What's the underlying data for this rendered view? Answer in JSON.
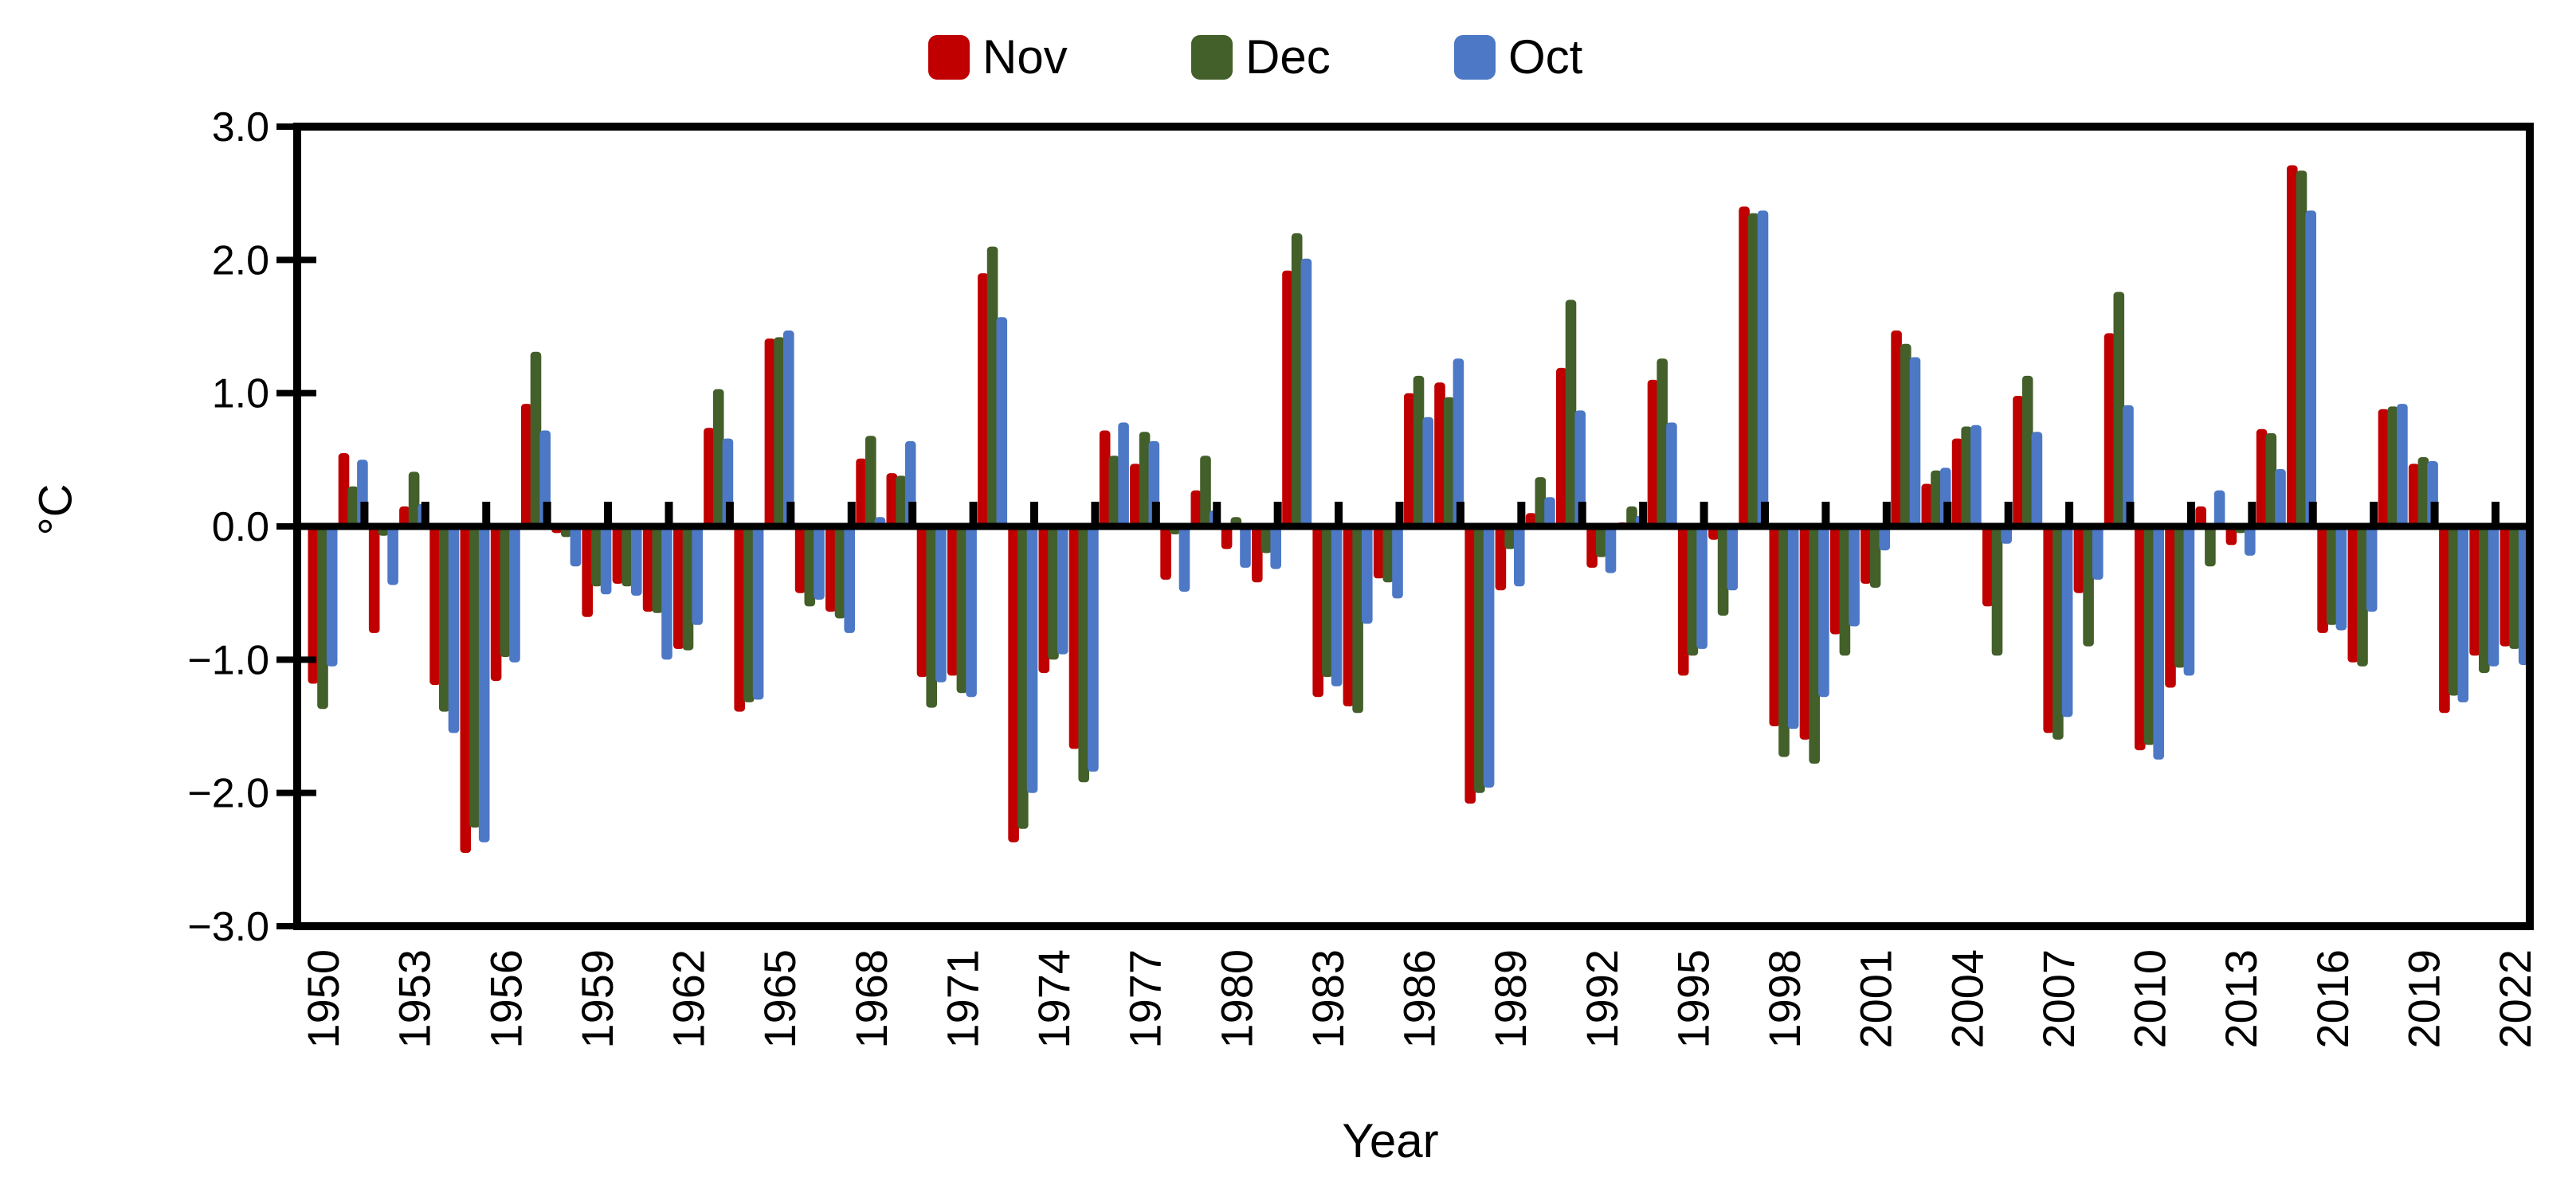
{
  "page": {
    "background": "#ffffff"
  },
  "legend": {
    "items": [
      {
        "label": "Nov",
        "color": "#c00000"
      },
      {
        "label": "Dec",
        "color": "#435f2a"
      },
      {
        "label": "Oct",
        "color": "#4c78c6"
      }
    ]
  },
  "y_axis": {
    "title": "°C",
    "tick_labels": [
      "3.0",
      "2.0",
      "1.0",
      "0.0",
      "−1.0",
      "−2.0",
      "−3.0"
    ],
    "min": -3.0,
    "max": 3.0,
    "step": 1.0
  },
  "x_axis": {
    "title": "Year",
    "tick_labels": [
      "1950",
      "1953",
      "1956",
      "1959",
      "1962",
      "1965",
      "1968",
      "1971",
      "1974",
      "1977",
      "1980",
      "1983",
      "1986",
      "1989",
      "1992",
      "1995",
      "1998",
      "2001",
      "2004",
      "2007",
      "2010",
      "2013",
      "2016",
      "2019",
      "2022"
    ]
  },
  "chart_data": {
    "type": "bar",
    "title": "",
    "xlabel": "Year",
    "ylabel": "°C",
    "ylim": [
      -3.0,
      3.0
    ],
    "grid": false,
    "legend_position": "top",
    "categories": [
      1950,
      1951,
      1952,
      1953,
      1954,
      1955,
      1956,
      1957,
      1958,
      1959,
      1960,
      1961,
      1962,
      1963,
      1964,
      1965,
      1966,
      1967,
      1968,
      1969,
      1970,
      1971,
      1972,
      1973,
      1974,
      1975,
      1976,
      1977,
      1978,
      1979,
      1980,
      1981,
      1982,
      1983,
      1984,
      1985,
      1986,
      1987,
      1988,
      1989,
      1990,
      1991,
      1992,
      1993,
      1994,
      1995,
      1996,
      1997,
      1998,
      1999,
      2000,
      2001,
      2002,
      2003,
      2004,
      2005,
      2006,
      2007,
      2008,
      2009,
      2010,
      2011,
      2012,
      2013,
      2014,
      2015,
      2016,
      2017,
      2018,
      2019,
      2020,
      2021,
      2022
    ],
    "series": [
      {
        "name": "Nov",
        "color": "#c00000",
        "values": [
          -1.18,
          0.55,
          -0.8,
          0.15,
          -1.19,
          -2.45,
          -1.16,
          0.92,
          -0.05,
          -0.68,
          -0.43,
          -0.64,
          -0.92,
          0.74,
          -1.39,
          1.41,
          -0.5,
          -0.64,
          0.51,
          0.4,
          -1.13,
          -1.12,
          1.9,
          -2.37,
          -1.1,
          -1.67,
          0.72,
          0.47,
          -0.4,
          0.27,
          -0.17,
          -0.42,
          1.92,
          -1.28,
          -1.35,
          -0.39,
          1.0,
          1.08,
          -2.08,
          -0.48,
          0.1,
          1.19,
          -0.31,
          0.03,
          1.1,
          -1.12,
          -0.1,
          2.4,
          -1.5,
          -1.6,
          -0.81,
          -0.43,
          1.47,
          0.32,
          0.66,
          -0.6,
          0.98,
          -1.55,
          -0.5,
          1.45,
          -1.68,
          -1.21,
          0.15,
          -0.14,
          0.73,
          2.71,
          -0.8,
          -1.02,
          0.88,
          0.47,
          -1.4,
          -0.97,
          -0.9
        ]
      },
      {
        "name": "Dec",
        "color": "#435f2a",
        "values": [
          -1.37,
          0.3,
          -0.07,
          0.41,
          -1.39,
          -2.26,
          -0.98,
          1.31,
          -0.08,
          -0.45,
          -0.45,
          -0.65,
          -0.93,
          1.03,
          -1.32,
          1.42,
          -0.6,
          -0.69,
          0.68,
          0.38,
          -1.36,
          -1.25,
          2.1,
          -2.27,
          -1.0,
          -1.92,
          0.53,
          0.71,
          -0.06,
          0.53,
          0.07,
          -0.2,
          2.2,
          -1.13,
          -1.4,
          -0.42,
          1.13,
          0.97,
          -2.0,
          -0.17,
          0.37,
          1.7,
          -0.23,
          0.15,
          1.26,
          -0.97,
          -0.67,
          2.35,
          -1.73,
          -1.78,
          -0.97,
          -0.46,
          1.37,
          0.42,
          0.75,
          -0.97,
          1.13,
          -1.6,
          -0.9,
          1.76,
          -1.64,
          -1.06,
          -0.3,
          -0.05,
          0.7,
          2.67,
          -0.74,
          -1.05,
          0.9,
          0.52,
          -1.27,
          -1.1,
          -0.92
        ]
      },
      {
        "name": "Oct",
        "color": "#4c78c6",
        "values": [
          -1.05,
          0.5,
          -0.44,
          0.17,
          -1.55,
          -2.37,
          -1.02,
          0.72,
          -0.3,
          -0.51,
          -0.52,
          -1.0,
          -0.74,
          0.66,
          -1.3,
          1.47,
          -0.55,
          -0.8,
          0.07,
          0.64,
          -1.17,
          -1.28,
          1.57,
          -2.0,
          -0.96,
          -1.84,
          0.78,
          0.64,
          -0.49,
          0.12,
          -0.31,
          -0.32,
          2.01,
          -1.2,
          -0.73,
          -0.54,
          0.82,
          1.26,
          -1.96,
          -0.45,
          0.22,
          0.87,
          -0.35,
          0.08,
          0.78,
          -0.92,
          -0.48,
          2.37,
          -1.52,
          -1.28,
          -0.75,
          -0.18,
          1.27,
          0.44,
          0.76,
          -0.13,
          0.71,
          -1.43,
          -0.4,
          0.91,
          -1.75,
          -1.12,
          0.27,
          -0.22,
          0.43,
          2.37,
          -0.78,
          -0.64,
          0.92,
          0.49,
          -1.32,
          -1.05,
          -1.04
        ]
      }
    ]
  }
}
